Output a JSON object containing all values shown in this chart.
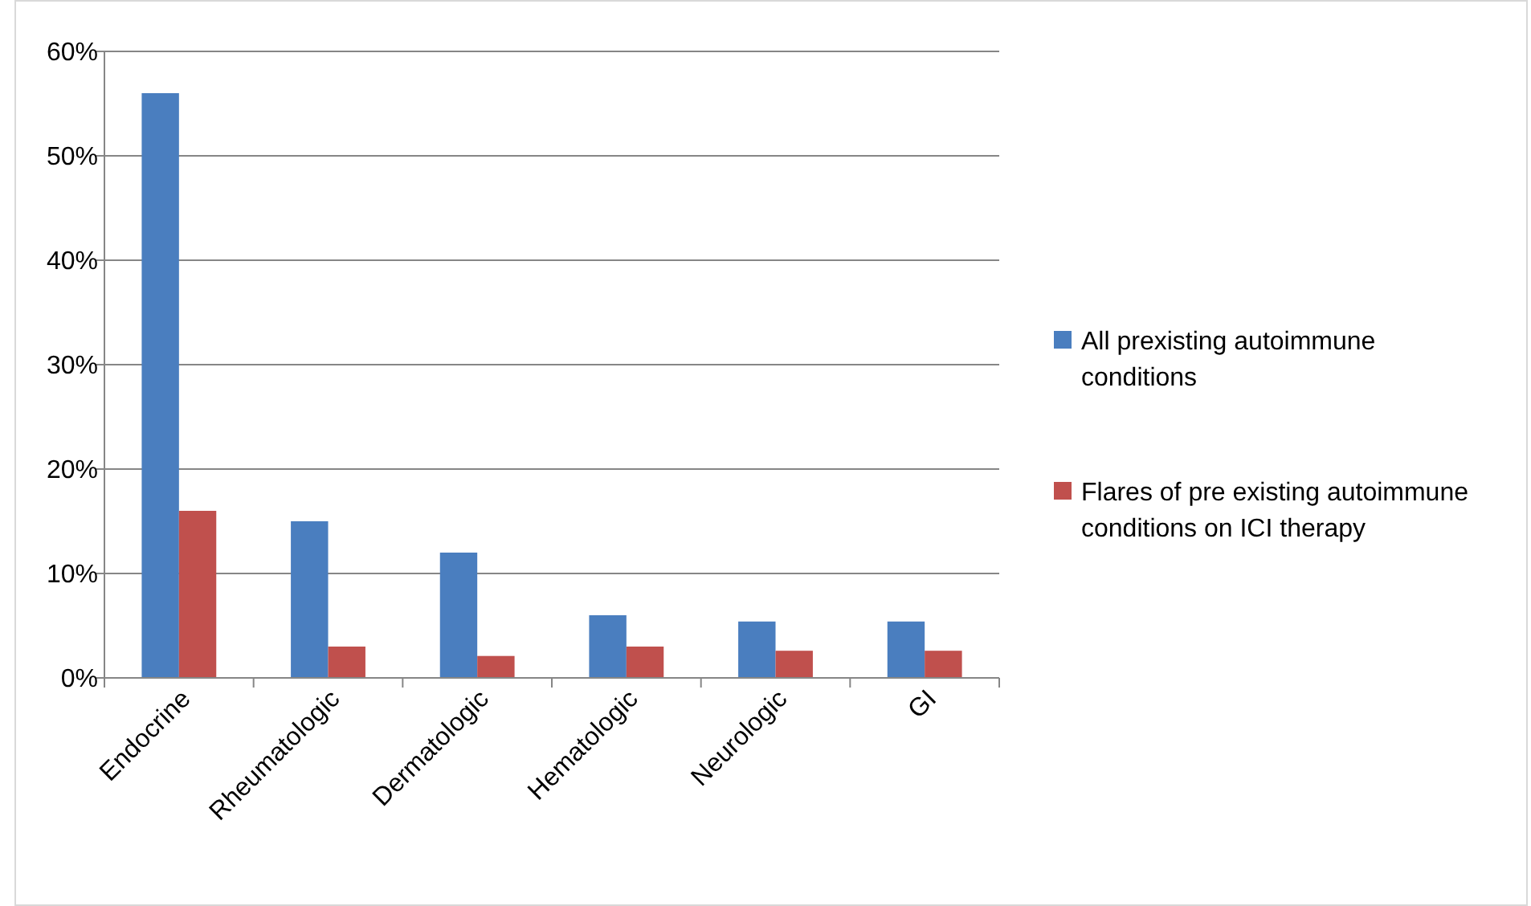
{
  "chart_data": {
    "type": "bar",
    "categories": [
      "Endocrine",
      "Rheumatologic",
      "Dermatologic",
      "Hematologic",
      "Neurologic",
      "GI"
    ],
    "series": [
      {
        "name": "All prexisting autoimmune conditions",
        "color": "#4a7ebf",
        "values": [
          56,
          15,
          12,
          6,
          5.4,
          5.4
        ]
      },
      {
        "name": "Flares of pre existing autoimmune conditions on ICI therapy",
        "color": "#c0504d",
        "values": [
          16,
          3,
          2.1,
          3,
          2.6,
          2.6
        ]
      }
    ],
    "ylim": [
      0,
      60
    ],
    "yticks": [
      {
        "value": 0,
        "label": "0%"
      },
      {
        "value": 10,
        "label": "10%"
      },
      {
        "value": 20,
        "label": "20%"
      },
      {
        "value": 30,
        "label": "30%"
      },
      {
        "value": 40,
        "label": "40%"
      },
      {
        "value": 50,
        "label": "50%"
      },
      {
        "value": 60,
        "label": "60%"
      }
    ],
    "grid": "y",
    "legend": "right"
  }
}
